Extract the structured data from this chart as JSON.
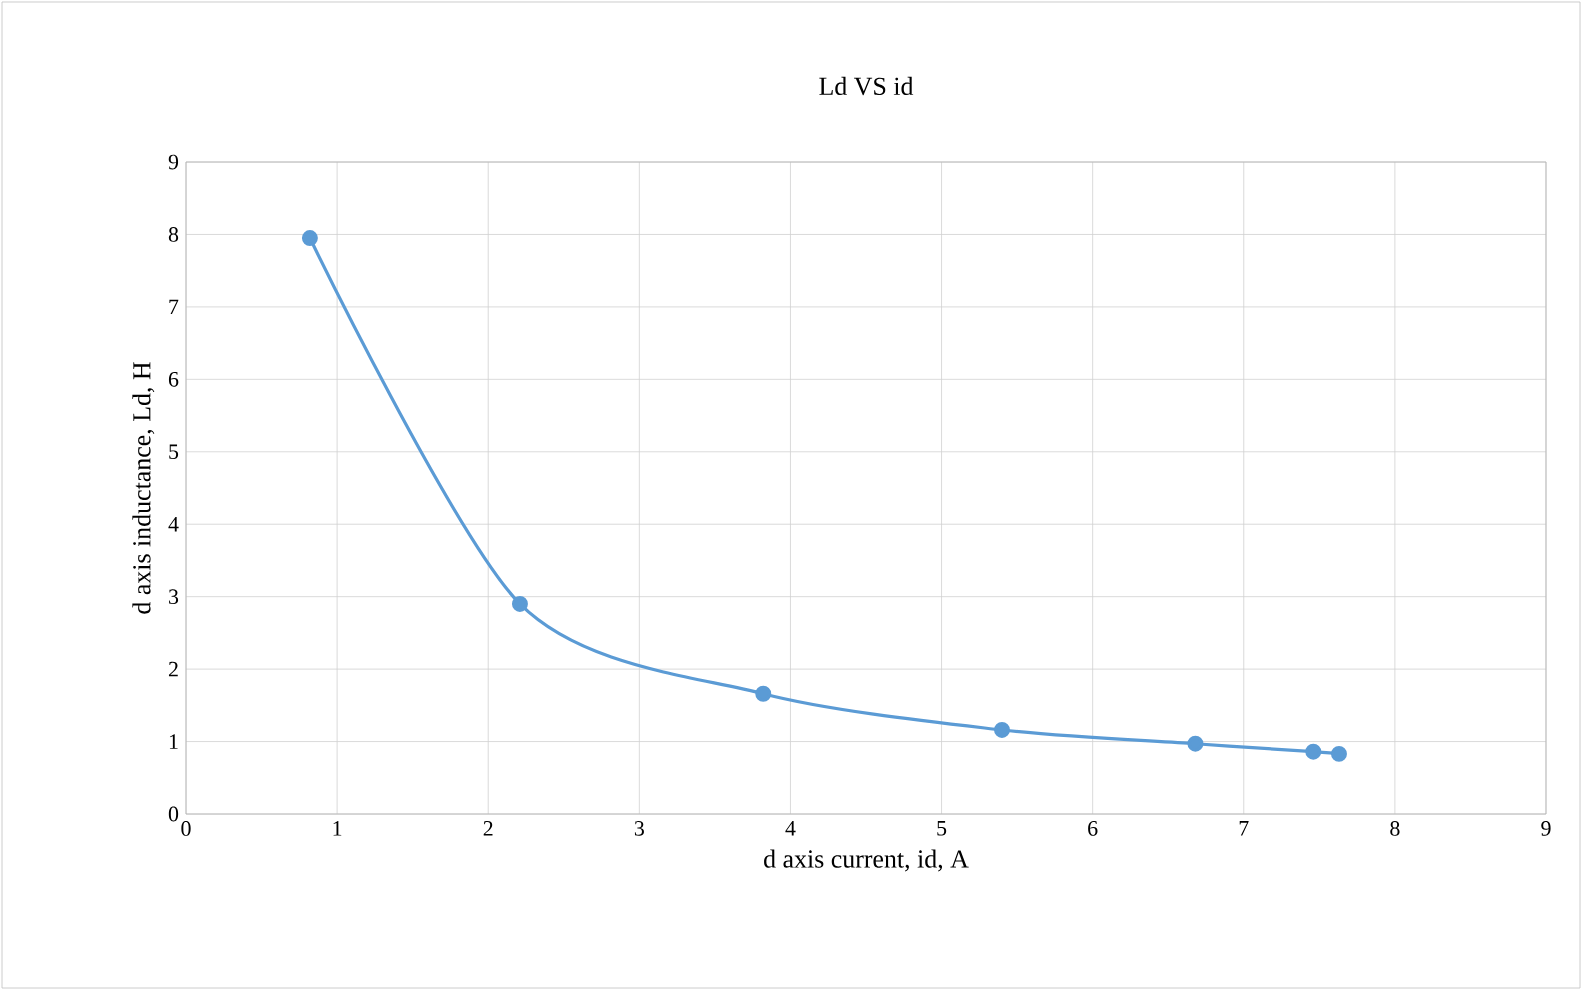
{
  "chart_data": {
    "type": "line",
    "title": "Ld VS id",
    "xlabel": "d axis current, id, A",
    "ylabel": "d axis inductance, Ld, H",
    "x": [
      0.82,
      2.21,
      3.82,
      5.4,
      6.68,
      7.46,
      7.63
    ],
    "series": [
      {
        "color": "#5b9bd5",
        "values": [
          7.95,
          2.9,
          1.66,
          1.16,
          0.97,
          0.86,
          0.83
        ]
      }
    ],
    "xlim": [
      0,
      9
    ],
    "ylim": [
      0,
      9
    ],
    "xticks": [
      0,
      1,
      2,
      3,
      4,
      5,
      6,
      7,
      8,
      9
    ],
    "yticks": [
      0,
      1,
      2,
      3,
      4,
      5,
      6,
      7,
      8,
      9
    ],
    "grid": true,
    "marker": "circle",
    "line_style": "solid"
  }
}
